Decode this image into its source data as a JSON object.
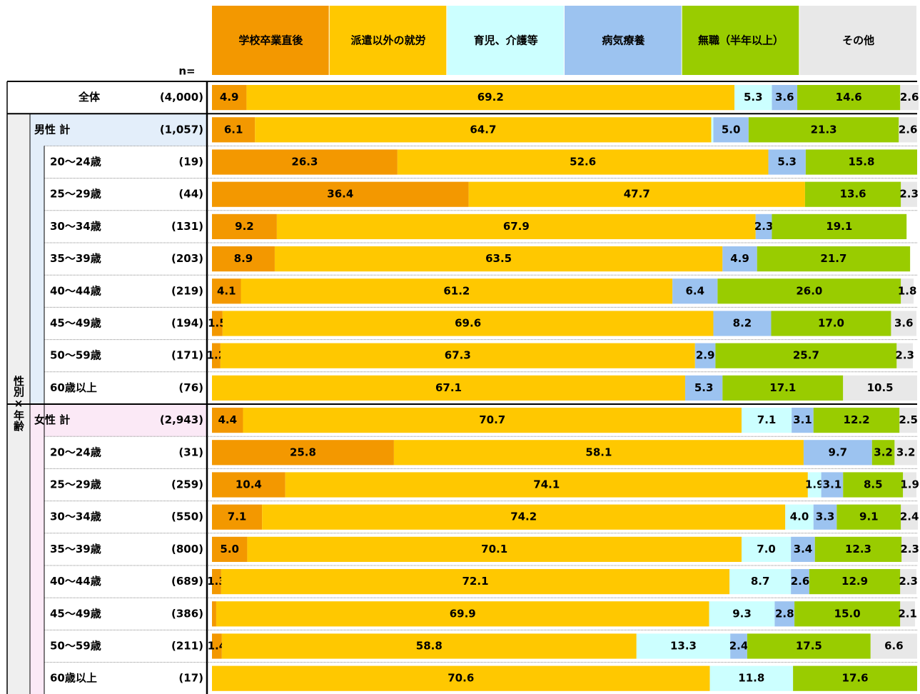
{
  "chart_data": {
    "type": "stacked_bar_horizontal",
    "n_label": "n=",
    "group_label": "性別×年齢",
    "categories": [
      "全体",
      "男性 計",
      "20〜24歳",
      "25〜29歳",
      "30〜34歳",
      "35〜39歳",
      "40〜44歳",
      "45〜49歳",
      "50〜59歳",
      "60歳以上",
      "女性 計",
      "20〜24歳",
      "25〜29歳",
      "30〜34歳",
      "35〜39歳",
      "40〜44歳",
      "45〜49歳",
      "50〜59歳",
      "60歳以上"
    ],
    "sample_sizes": [
      "(4,000)",
      "(1,057)",
      "(19)",
      "(44)",
      "(131)",
      "(203)",
      "(219)",
      "(194)",
      "(171)",
      "(76)",
      "(2,943)",
      "(31)",
      "(259)",
      "(550)",
      "(800)",
      "(689)",
      "(386)",
      "(211)",
      "(17)"
    ],
    "xlim": [
      0,
      100
    ],
    "series": [
      {
        "name": "学校卒業直後",
        "color": "#f39800",
        "values": [
          4.9,
          6.1,
          26.3,
          36.4,
          9.2,
          8.9,
          4.1,
          1.5,
          1.2,
          0,
          4.4,
          25.8,
          10.4,
          7.1,
          5.0,
          1.3,
          0.6,
          1.4,
          0
        ],
        "value_labels": [
          "4.9",
          "6.1",
          "26.3",
          "36.4",
          "9.2",
          "8.9",
          "4.1",
          "1.5",
          "1.2",
          null,
          "4.4",
          "25.8",
          "10.4",
          "7.1",
          "5.0",
          "1.3",
          null,
          "1.4",
          null
        ]
      },
      {
        "name": "派遣以外の就労",
        "color": "#ffc800",
        "values": [
          69.2,
          64.7,
          52.6,
          47.7,
          67.9,
          63.5,
          61.2,
          69.6,
          67.3,
          67.1,
          70.7,
          58.1,
          74.1,
          74.2,
          70.1,
          72.1,
          69.9,
          58.8,
          70.6
        ],
        "value_labels": [
          "69.2",
          "64.7",
          "52.6",
          "47.7",
          "67.9",
          "63.5",
          "61.2",
          "69.6",
          "67.3",
          "67.1",
          "70.7",
          "58.1",
          "74.1",
          "74.2",
          "70.1",
          "72.1",
          "69.9",
          "58.8",
          "70.6"
        ]
      },
      {
        "name": "育児、介護等",
        "color": "#ccffff",
        "values": [
          5.3,
          0.3,
          0,
          0,
          0,
          0,
          0,
          0,
          0,
          0,
          7.1,
          0,
          1.9,
          4.0,
          7.0,
          8.7,
          9.3,
          13.3,
          11.8
        ],
        "value_labels": [
          "5.3",
          null,
          null,
          null,
          null,
          null,
          null,
          null,
          null,
          null,
          "7.1",
          null,
          "1.9",
          "4.0",
          "7.0",
          "8.7",
          "9.3",
          "13.3",
          "11.8"
        ]
      },
      {
        "name": "病気療養",
        "color": "#9cc3f0",
        "values": [
          3.6,
          5.0,
          5.3,
          0,
          2.3,
          4.9,
          6.4,
          8.2,
          2.9,
          5.3,
          3.1,
          9.7,
          3.1,
          3.3,
          3.4,
          2.6,
          2.8,
          2.4,
          0
        ],
        "value_labels": [
          "3.6",
          "5.0",
          "5.3",
          null,
          "2.3",
          "4.9",
          "6.4",
          "8.2",
          "2.9",
          "5.3",
          "3.1",
          "9.7",
          "3.1",
          "3.3",
          "3.4",
          "2.6",
          "2.8",
          "2.4",
          null
        ]
      },
      {
        "name": "無職（半年以上）",
        "color": "#99cc00",
        "values": [
          14.6,
          21.3,
          15.8,
          13.6,
          19.1,
          21.7,
          26.0,
          17.0,
          25.7,
          17.1,
          12.2,
          3.2,
          8.5,
          9.1,
          12.3,
          12.9,
          15.0,
          17.5,
          17.6
        ],
        "value_labels": [
          "14.6",
          "21.3",
          "15.8",
          "13.6",
          "19.1",
          "21.7",
          "26.0",
          "17.0",
          "25.7",
          "17.1",
          "12.2",
          "3.2",
          "8.5",
          "9.1",
          "12.3",
          "12.9",
          "15.0",
          "17.5",
          "17.6"
        ]
      },
      {
        "name": "その他",
        "color": "#e8e8e8",
        "values": [
          2.6,
          2.6,
          0,
          2.3,
          0,
          0,
          1.8,
          3.6,
          2.3,
          10.5,
          2.5,
          3.2,
          1.9,
          2.4,
          2.3,
          2.3,
          2.1,
          6.6,
          0
        ],
        "value_labels": [
          "2.6",
          "2.6",
          null,
          "2.3",
          null,
          null,
          "1.8",
          "3.6",
          "2.3",
          "10.5",
          "2.5",
          "3.2",
          "1.9",
          "2.4",
          "2.3",
          "2.3",
          "2.1",
          "6.6",
          null
        ]
      }
    ]
  }
}
